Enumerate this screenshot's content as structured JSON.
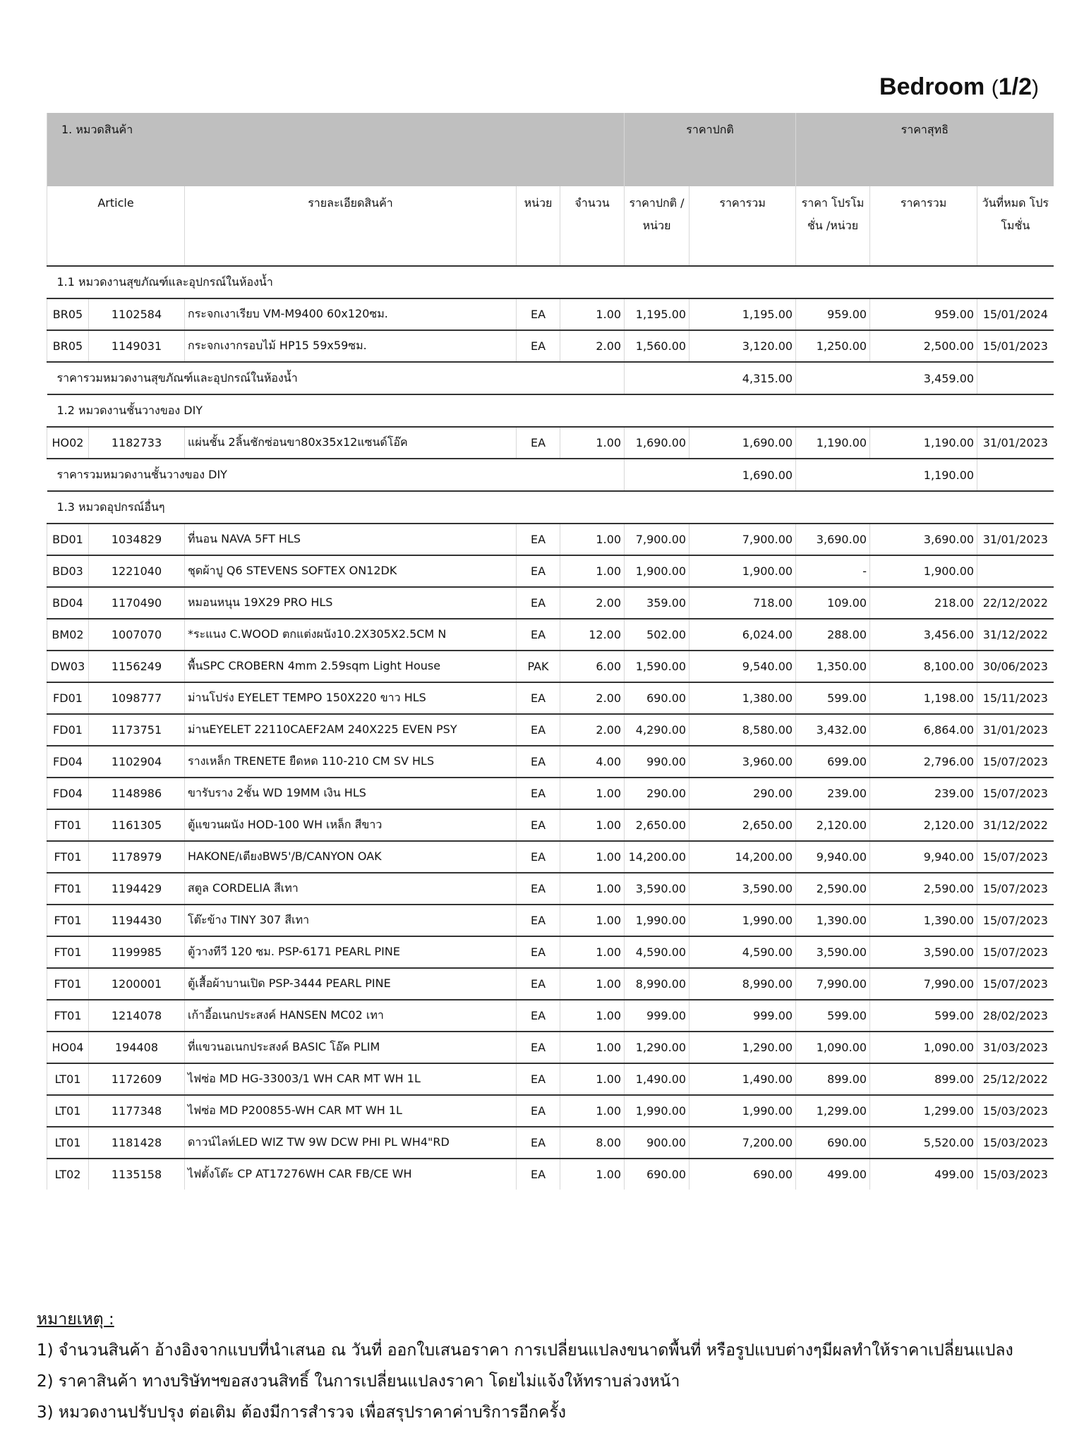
{
  "title": {
    "main": "Bedroom ",
    "paren_open": "(",
    "page": "1/2",
    "paren_close": ")"
  },
  "group_header": {
    "category": "1. หมวดสินค้า",
    "regular": "ราคาปกติ",
    "net": "ราคาสุทธิ"
  },
  "columns": [
    "Article",
    "รายละเอียดสินค้า",
    "หน่วย",
    "จำนวน",
    "ราคาปกติ /หน่วย",
    "ราคารวม",
    "ราคา โปรโมชั่น /หน่วย",
    "ราคารวม",
    "วันที่หมด โปรโมชั่น"
  ],
  "sections": [
    {
      "title": "1.1 หมวดงานสุขภัณฑ์และอุปกรณ์ในห้องน้ำ",
      "rows": [
        [
          "BR05",
          "1102584",
          "กระจกเงาเรียบ VM-M9400 60x120ซม.",
          "EA",
          "1.00",
          "1,195.00",
          "1,195.00",
          "959.00",
          "959.00",
          "15/01/2024"
        ],
        [
          "BR05",
          "1149031",
          "กระจกเงากรอบไม้ HP15 59x59ซม.",
          "EA",
          "2.00",
          "1,560.00",
          "3,120.00",
          "1,250.00",
          "2,500.00",
          "15/01/2023"
        ]
      ],
      "subtotal": {
        "label": "ราคารวมหมวดงานสุขภัณฑ์และอุปกรณ์ในห้องน้ำ",
        "regular": "4,315.00",
        "net": "3,459.00"
      }
    },
    {
      "title": "1.2 หมวดงานชั้นวางของ DIY",
      "rows": [
        [
          "HO02",
          "1182733",
          "แผ่นชั้น 2ลิ้นชักซ่อนขา80x35x12แซนด์โอ๊ค",
          "EA",
          "1.00",
          "1,690.00",
          "1,690.00",
          "1,190.00",
          "1,190.00",
          "31/01/2023"
        ]
      ],
      "subtotal": {
        "label": "ราคารวมหมวดงานชั้นวางของ DIY",
        "regular": "1,690.00",
        "net": "1,190.00"
      }
    },
    {
      "title": "1.3 หมวดอุปกรณ์อื่นๆ",
      "rows": [
        [
          "BD01",
          "1034829",
          "ที่นอน NAVA 5FT HLS",
          "EA",
          "1.00",
          "7,900.00",
          "7,900.00",
          "3,690.00",
          "3,690.00",
          "31/01/2023"
        ],
        [
          "BD03",
          "1221040",
          "ชุดผ้าปู Q6 STEVENS SOFTEX ON12DK",
          "EA",
          "1.00",
          "1,900.00",
          "1,900.00",
          "-",
          "1,900.00",
          ""
        ],
        [
          "BD04",
          "1170490",
          "หมอนหนุน 19X29 PRO HLS",
          "EA",
          "2.00",
          "359.00",
          "718.00",
          "109.00",
          "218.00",
          "22/12/2022"
        ],
        [
          "BM02",
          "1007070",
          "*ระแนง C.WOOD ตกแต่งผนัง10.2X305X2.5CM N",
          "EA",
          "12.00",
          "502.00",
          "6,024.00",
          "288.00",
          "3,456.00",
          "31/12/2022"
        ],
        [
          "DW03",
          "1156249",
          "พื้นSPC CROBERN 4mm 2.59sqm Light House",
          "PAK",
          "6.00",
          "1,590.00",
          "9,540.00",
          "1,350.00",
          "8,100.00",
          "30/06/2023"
        ],
        [
          "FD01",
          "1098777",
          "ม่านโปร่ง EYELET TEMPO 150X220 ขาว HLS",
          "EA",
          "2.00",
          "690.00",
          "1,380.00",
          "599.00",
          "1,198.00",
          "15/11/2023"
        ],
        [
          "FD01",
          "1173751",
          "ม่านEYELET 22110CAEF2AM 240X225 EVEN PSY",
          "EA",
          "2.00",
          "4,290.00",
          "8,580.00",
          "3,432.00",
          "6,864.00",
          "31/01/2023"
        ],
        [
          "FD04",
          "1102904",
          "รางเหล็ก TRENETE ยืดหด 110-210 CM SV HLS",
          "EA",
          "4.00",
          "990.00",
          "3,960.00",
          "699.00",
          "2,796.00",
          "15/07/2023"
        ],
        [
          "FD04",
          "1148986",
          "ขารับราง 2ชั้น WD 19MM เงิน HLS",
          "EA",
          "1.00",
          "290.00",
          "290.00",
          "239.00",
          "239.00",
          "15/07/2023"
        ],
        [
          "FT01",
          "1161305",
          "ตู้แขวนผนัง HOD-100 WH เหล็ก สีขาว",
          "EA",
          "1.00",
          "2,650.00",
          "2,650.00",
          "2,120.00",
          "2,120.00",
          "31/12/2022"
        ],
        [
          "FT01",
          "1178979",
          "HAKONE/เตียงBW5'/B/CANYON OAK",
          "EA",
          "1.00",
          "14,200.00",
          "14,200.00",
          "9,940.00",
          "9,940.00",
          "15/07/2023"
        ],
        [
          "FT01",
          "1194429",
          "สตูล CORDELIA สีเทา",
          "EA",
          "1.00",
          "3,590.00",
          "3,590.00",
          "2,590.00",
          "2,590.00",
          "15/07/2023"
        ],
        [
          "FT01",
          "1194430",
          "โต๊ะข้าง TINY 307 สีเทา",
          "EA",
          "1.00",
          "1,990.00",
          "1,990.00",
          "1,390.00",
          "1,390.00",
          "15/07/2023"
        ],
        [
          "FT01",
          "1199985",
          "ตู้วางทีวี 120 ซม. PSP-6171  PEARL PINE",
          "EA",
          "1.00",
          "4,590.00",
          "4,590.00",
          "3,590.00",
          "3,590.00",
          "15/07/2023"
        ],
        [
          "FT01",
          "1200001",
          "ตู้เสื้อผ้าบานเปิด PSP-3444 PEARL PINE",
          "EA",
          "1.00",
          "8,990.00",
          "8,990.00",
          "7,990.00",
          "7,990.00",
          "15/07/2023"
        ],
        [
          "FT01",
          "1214078",
          "เก้าอี้อเนกประสงค์ HANSEN MC02  เทา",
          "EA",
          "1.00",
          "999.00",
          "999.00",
          "599.00",
          "599.00",
          "28/02/2023"
        ],
        [
          "HO04",
          "194408",
          "ที่แขวนอเนกประสงค์ BASIC โอ๊ค PLIM",
          "EA",
          "1.00",
          "1,290.00",
          "1,290.00",
          "1,090.00",
          "1,090.00",
          "31/03/2023"
        ],
        [
          "LT01",
          "1172609",
          "ไฟซ่อ MD HG-33003/1 WH CAR MT WH 1L",
          "EA",
          "1.00",
          "1,490.00",
          "1,490.00",
          "899.00",
          "899.00",
          "25/12/2022"
        ],
        [
          "LT01",
          "1177348",
          "ไฟซ่อ MD P200855-WH CAR MT WH 1L",
          "EA",
          "1.00",
          "1,990.00",
          "1,990.00",
          "1,299.00",
          "1,299.00",
          "15/03/2023"
        ],
        [
          "LT01",
          "1181428",
          "ดาวน์ไลท์LED WIZ TW 9W DCW PHI PL WH4\"RD",
          "EA",
          "8.00",
          "900.00",
          "7,200.00",
          "690.00",
          "5,520.00",
          "15/03/2023"
        ],
        [
          "LT02",
          "1135158",
          "ไฟตั้งโต๊ะ CP AT17276WH CAR FB/CE WH",
          "EA",
          "1.00",
          "690.00",
          "690.00",
          "499.00",
          "499.00",
          "15/03/2023"
        ]
      ]
    }
  ],
  "notes": {
    "heading": "หมายเหตุ :",
    "lines": [
      "1) จำนวนสินค้า อ้างอิงจากแบบที่นำเสนอ ณ วันที่ ออกใบเสนอราคา การเปลี่ยนแปลงขนาดพื้นที่ หรือรูปแบบต่างๆมีผลทำให้ราคาเปลี่ยนแปลง",
      "2) ราคาสินค้า ทางบริษัทฯขอสงวนสิทธิ์ ในการเปลี่ยนแปลงราคา โดยไม่แจ้งให้ทราบล่วงหน้า",
      "3) หมวดงานปรับปรุง ต่อเติม ต้องมีการสำรวจ เพื่อสรุปราคาค่าบริการอีกครั้ง"
    ]
  }
}
